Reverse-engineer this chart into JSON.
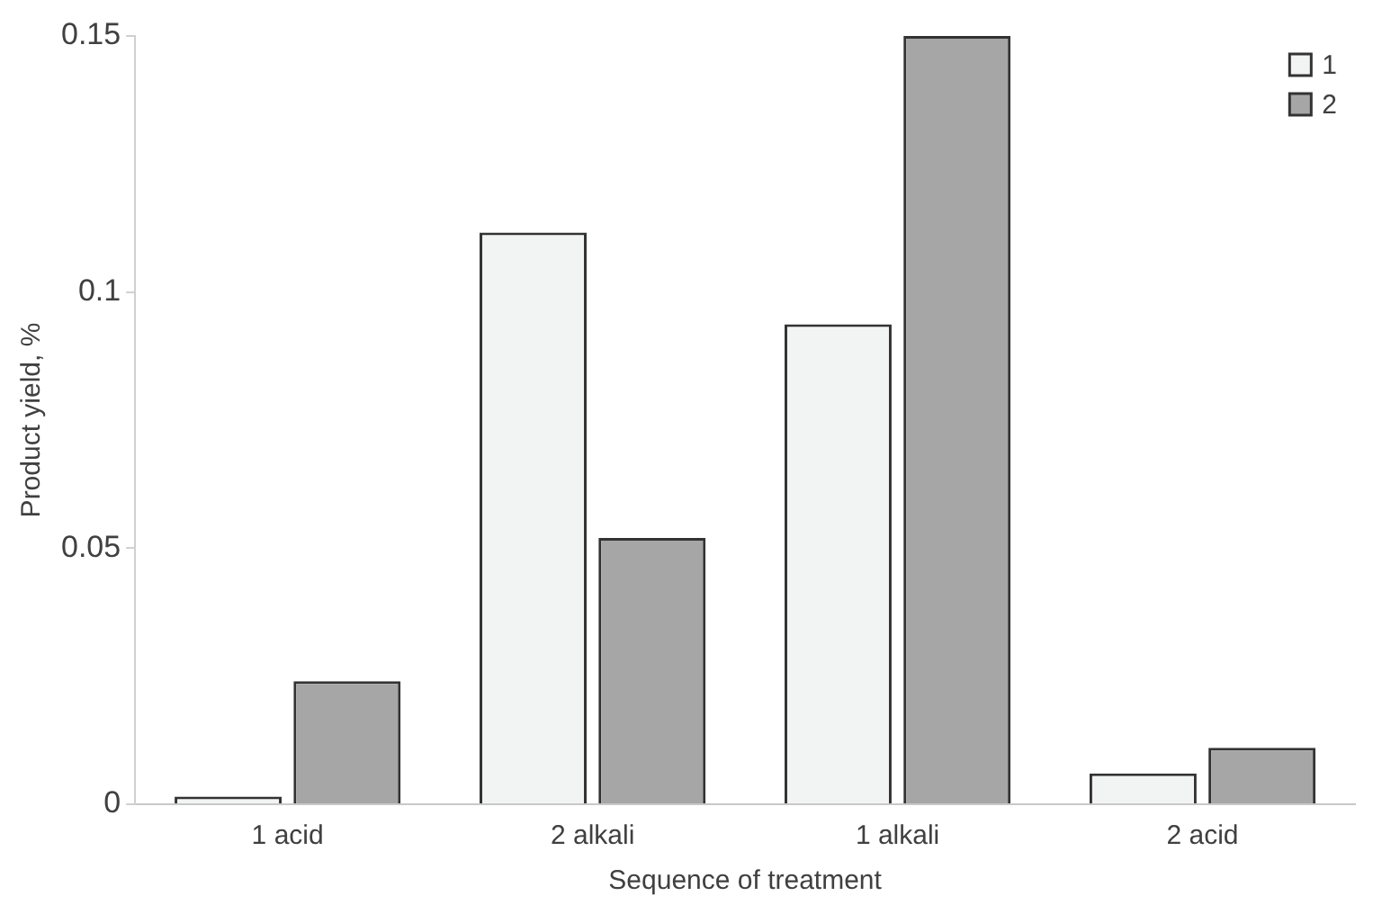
{
  "chart_data": {
    "type": "bar",
    "xlabel": "Sequence of treatment",
    "ylabel": "Product yield, %",
    "categories": [
      "1 acid",
      "2 alkali",
      "1 alkali",
      "2 acid"
    ],
    "series": [
      {
        "name": "1",
        "color": "#f2f3f3",
        "values": [
          0.0015,
          0.1116,
          0.0937,
          0.006
        ]
      },
      {
        "name": "2",
        "color": "#a6a6a6",
        "values": [
          0.024,
          0.052,
          0.15,
          0.011
        ]
      }
    ],
    "ylim": [
      0,
      0.15
    ],
    "yticks": [
      0,
      0.05,
      0.1,
      0.15
    ],
    "grid": false,
    "legend": "top right"
  }
}
